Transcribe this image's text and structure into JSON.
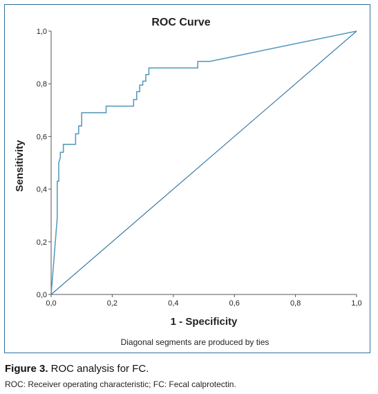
{
  "figure": {
    "label": "Figure 3.",
    "caption": " ROC analysis for FC.",
    "note": "ROC: Receiver operating characteristic; FC: Fecal calprotectin."
  },
  "chart_data": {
    "type": "line",
    "title": "ROC Curve",
    "xlabel": "1 - Specificity",
    "ylabel": "Sensitivity",
    "footnote": "Diagonal segments are produced by ties",
    "xlim": [
      0,
      1
    ],
    "ylim": [
      0,
      1
    ],
    "x_ticks": [
      "0,0",
      "0,2",
      "0,4",
      "0,6",
      "0,8",
      "1,0"
    ],
    "y_ticks": [
      "0,0",
      "0,2",
      "0,4",
      "0,6",
      "0,8",
      "1,0"
    ],
    "grid": false,
    "colors": {
      "curve": "#5a9bbf",
      "reference": "#3d7ba3",
      "axis": "#555555"
    },
    "series": [
      {
        "role": "roc-curve",
        "points": [
          [
            0.0,
            0.0
          ],
          [
            0.02,
            0.29
          ],
          [
            0.02,
            0.43
          ],
          [
            0.025,
            0.43
          ],
          [
            0.025,
            0.5
          ],
          [
            0.03,
            0.52
          ],
          [
            0.03,
            0.54
          ],
          [
            0.04,
            0.54
          ],
          [
            0.04,
            0.57
          ],
          [
            0.08,
            0.57
          ],
          [
            0.08,
            0.61
          ],
          [
            0.09,
            0.61
          ],
          [
            0.09,
            0.64
          ],
          [
            0.1,
            0.64
          ],
          [
            0.1,
            0.69
          ],
          [
            0.18,
            0.69
          ],
          [
            0.18,
            0.715
          ],
          [
            0.27,
            0.715
          ],
          [
            0.27,
            0.74
          ],
          [
            0.28,
            0.74
          ],
          [
            0.28,
            0.77
          ],
          [
            0.29,
            0.77
          ],
          [
            0.29,
            0.795
          ],
          [
            0.3,
            0.795
          ],
          [
            0.3,
            0.81
          ],
          [
            0.31,
            0.81
          ],
          [
            0.31,
            0.835
          ],
          [
            0.32,
            0.835
          ],
          [
            0.32,
            0.86
          ],
          [
            0.48,
            0.86
          ],
          [
            0.48,
            0.885
          ],
          [
            0.52,
            0.885
          ],
          [
            1.0,
            1.0
          ]
        ]
      },
      {
        "role": "reference-line",
        "points": [
          [
            0.0,
            0.0
          ],
          [
            1.0,
            1.0
          ]
        ]
      }
    ]
  }
}
